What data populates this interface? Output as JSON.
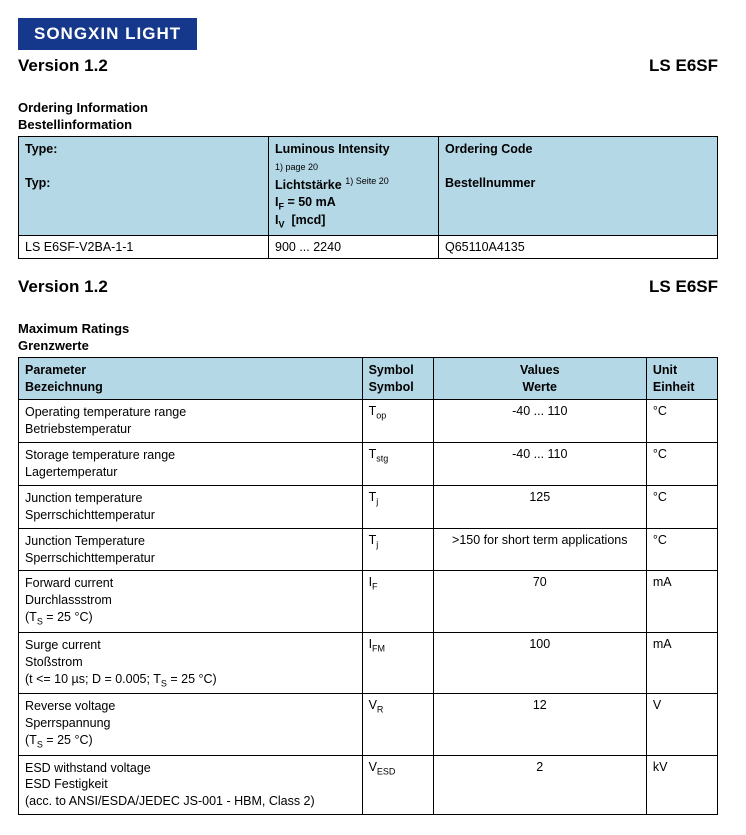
{
  "brand": "SONGXIN LIGHT",
  "version_label": "Version 1.2",
  "product_code": "LS E6SF",
  "ordering": {
    "title_en": "Ordering Information",
    "title_de": "Bestellinformation",
    "head_type_en": "Type:",
    "head_type_de": "Typ:",
    "head_lum_en": "Luminous Intensity",
    "head_lum_note": "1) page 20",
    "head_lum_de": "Lichtstärke",
    "head_lum_de_note": "1) Seite 20",
    "head_if": "IF = 50 mA",
    "head_iv": "IV  [mcd]",
    "head_order_en": "Ordering Code",
    "head_order_de": "Bestellnummer",
    "row_type": "LS E6SF-V2BA-1-1",
    "row_iv": "900  ...  2240",
    "row_code": "Q65110A4135"
  },
  "ratings": {
    "title_en": "Maximum Ratings",
    "title_de": "Grenzwerte",
    "head_param_en": "Parameter",
    "head_param_de": "Bezeichnung",
    "head_sym_en": "Symbol",
    "head_sym_de": "Symbol",
    "head_val_en": "Values",
    "head_val_de": "Werte",
    "head_unit_en": "Unit",
    "head_unit_de": "Einheit",
    "rows": [
      {
        "p_en": "Operating temperature range",
        "p_de": "Betriebstemperatur",
        "sym": "Top",
        "val": "-40 ... 110",
        "unit": "°C"
      },
      {
        "p_en": "Storage temperature range",
        "p_de": "Lagertemperatur",
        "sym": "Tstg",
        "val": "-40 ... 110",
        "unit": "°C"
      },
      {
        "p_en": "Junction temperature",
        "p_de": "Sperrschichttemperatur",
        "sym": "Tj",
        "val": "125",
        "unit": "°C"
      },
      {
        "p_en": "Junction Temperature",
        "p_de": "Sperrschichttemperatur",
        "sym": "Tj",
        "val": ">150 for short term applications",
        "unit": "°C"
      },
      {
        "p_en": "Forward current",
        "p_de": "Durchlassstrom",
        "p_cond": "(TS = 25 °C)",
        "sym": "IF",
        "val": "70",
        "unit": "mA"
      },
      {
        "p_en": "Surge current",
        "p_de": "Stoßstrom",
        "p_cond": "(t <= 10 µs; D = 0.005; TS = 25 °C)",
        "sym": "IFM",
        "val": "100",
        "unit": "mA"
      },
      {
        "p_en": "Reverse voltage",
        "p_de": "Sperrspannung",
        "p_cond": "(TS = 25 °C)",
        "sym": "VR",
        "val": "12",
        "unit": "V"
      },
      {
        "p_en": "ESD withstand voltage",
        "p_de": "ESD Festigkeit",
        "p_cond": "(acc. to ANSI/ESDA/JEDEC JS-001 - HBM, Class 2)",
        "sym": "VESD",
        "val": "2",
        "unit": "kV"
      }
    ]
  }
}
